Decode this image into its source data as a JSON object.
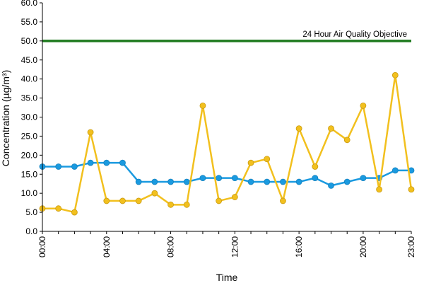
{
  "chart_data": {
    "type": "line",
    "xlabel": "Time",
    "ylabel": "Concentration (µg/m³)",
    "ylim": [
      0,
      60
    ],
    "y_ticks": [
      "0.0",
      "5.0",
      "10.0",
      "15.0",
      "20.0",
      "25.0",
      "30.0",
      "35.0",
      "40.0",
      "45.0",
      "50.0",
      "55.0",
      "60.0"
    ],
    "x_tick_labels": [
      "00:00",
      "04:00",
      "08:00",
      "12:00",
      "16:00",
      "20:00",
      "23:00"
    ],
    "x_tick_hours": [
      0,
      4,
      8,
      12,
      16,
      20,
      23
    ],
    "x_hours": [
      0,
      1,
      2,
      3,
      4,
      5,
      6,
      7,
      8,
      9,
      10,
      11,
      12,
      13,
      14,
      15,
      16,
      17,
      18,
      19,
      20,
      21,
      22,
      23
    ],
    "grid": false,
    "series": [
      {
        "color": "#1a9ae0",
        "values": [
          17,
          17,
          17,
          18,
          18,
          18,
          13,
          13,
          13,
          13,
          14,
          14,
          14,
          13,
          13,
          13,
          13,
          14,
          12,
          13,
          14,
          14,
          16,
          16
        ]
      },
      {
        "color": "#f2c01e",
        "values": [
          6,
          6,
          5,
          26,
          8,
          8,
          8,
          10,
          7,
          7,
          33,
          8,
          9,
          18,
          19,
          8,
          27,
          17,
          27,
          24,
          33,
          11,
          41,
          11
        ]
      }
    ],
    "reference_line": {
      "label": "24 Hour Air Quality Objective",
      "value": 50,
      "color": "#1e7a1e"
    }
  }
}
